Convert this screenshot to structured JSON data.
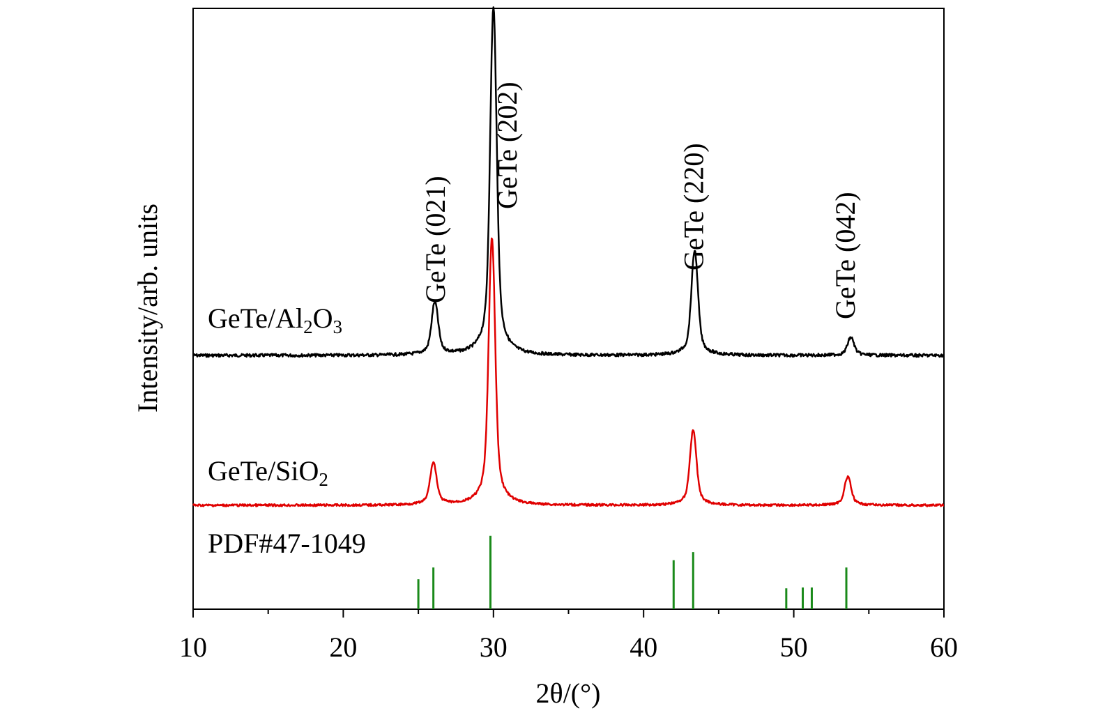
{
  "chart_data": {
    "type": "line",
    "xlabel": "2θ/(°)",
    "ylabel": "Intensity/arb. units",
    "xlim": [
      10,
      60
    ],
    "x_ticks": [
      10,
      20,
      30,
      40,
      50,
      60
    ],
    "x_tick_labels": [
      "10",
      "20",
      "30",
      "40",
      "50",
      "60"
    ],
    "legend": "none",
    "grid": false,
    "series": [
      {
        "name": "GeTe/Al2O3",
        "color": "#000000",
        "baseline": 1.0,
        "peaks": [
          {
            "x": 26.1,
            "height": 0.35
          },
          {
            "x": 30.0,
            "height": 2.32
          },
          {
            "x": 43.4,
            "height": 0.7
          },
          {
            "x": 53.8,
            "height": 0.12
          }
        ]
      },
      {
        "name": "GeTe/SiO2",
        "color": "#e00000",
        "baseline": 0.0,
        "peaks": [
          {
            "x": 26.0,
            "height": 0.28
          },
          {
            "x": 29.9,
            "height": 1.78
          },
          {
            "x": 43.3,
            "height": 0.5
          },
          {
            "x": 53.6,
            "height": 0.19
          }
        ]
      }
    ],
    "reference": {
      "name": "PDF#47-1049",
      "color": "#1a8a1a",
      "lines": [
        {
          "x": 25.0,
          "intensity": 0.33
        },
        {
          "x": 26.0,
          "intensity": 0.46
        },
        {
          "x": 29.8,
          "intensity": 0.81
        },
        {
          "x": 42.0,
          "intensity": 0.54
        },
        {
          "x": 43.3,
          "intensity": 0.63
        },
        {
          "x": 49.5,
          "intensity": 0.23
        },
        {
          "x": 50.6,
          "intensity": 0.24
        },
        {
          "x": 51.2,
          "intensity": 0.24
        },
        {
          "x": 53.5,
          "intensity": 0.46
        }
      ]
    },
    "annotations": [
      {
        "text": "GeTe (021)",
        "x": 26.1
      },
      {
        "text": "GeTe (202)",
        "x": 30.9
      },
      {
        "text": "GeTe (220)",
        "x": 43.3
      },
      {
        "text": "GeTe (042)",
        "x": 53.4
      }
    ]
  },
  "labels": {
    "series1_prefix": "GeTe/Al",
    "series1_sub1": "2",
    "series1_mid": "O",
    "series1_sub2": "3",
    "series2_prefix": "GeTe/SiO",
    "series2_sub": "2",
    "reference": "PDF#47-1049"
  }
}
